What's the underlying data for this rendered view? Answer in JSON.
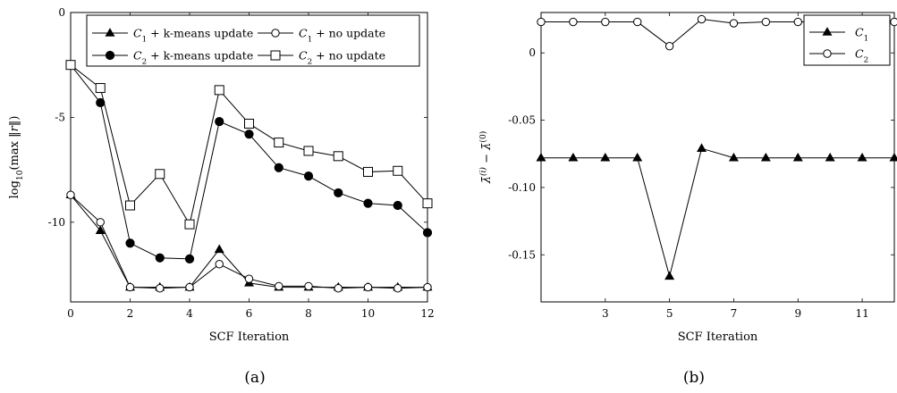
{
  "captions": [
    "(a)",
    "(b)"
  ],
  "chart_data": [
    {
      "type": "line",
      "xlabel": "SCF Iteration",
      "ylabel": "log10(max ||r||)",
      "xlim": [
        0,
        12
      ],
      "ylim": [
        -13.8,
        0
      ],
      "xticks": [
        0,
        2,
        4,
        6,
        8,
        10,
        12
      ],
      "yticks": [
        0,
        -5,
        -10
      ],
      "ytick_labels": [
        "0",
        "-5",
        "-10"
      ],
      "grid": false,
      "legend_position": "top",
      "x": [
        0,
        1,
        2,
        3,
        4,
        5,
        6,
        7,
        8,
        9,
        10,
        11,
        12
      ],
      "series": [
        {
          "name": "C1 + k-means update",
          "marker": "filled-triangle",
          "values": [
            -8.7,
            -10.4,
            -13.1,
            -13.1,
            -13.1,
            -11.3,
            -12.9,
            -13.1,
            -13.1,
            -13.1,
            -13.1,
            -13.1,
            -13.1
          ]
        },
        {
          "name": "C1 + no update",
          "marker": "open-circle",
          "values": [
            -8.7,
            -10.0,
            -13.1,
            -13.15,
            -13.1,
            -12.0,
            -12.7,
            -13.05,
            -13.05,
            -13.15,
            -13.1,
            -13.15,
            -13.1
          ]
        },
        {
          "name": "C2 + k-means update",
          "marker": "filled-circle",
          "values": [
            -2.5,
            -4.3,
            -11.0,
            -11.7,
            -11.75,
            -5.2,
            -5.8,
            -7.4,
            -7.8,
            -8.6,
            -9.1,
            -9.2,
            -10.5
          ]
        },
        {
          "name": "C2 + no update",
          "marker": "open-square",
          "values": [
            -2.5,
            -3.6,
            -9.2,
            -7.7,
            -10.1,
            -3.7,
            -5.3,
            -6.2,
            -6.6,
            -6.85,
            -7.6,
            -7.55,
            -9.1
          ]
        }
      ]
    },
    {
      "type": "line",
      "xlabel": "SCF Iteration",
      "ylabel": "λ̄(i) − λ̄(0)",
      "xlim": [
        1,
        12
      ],
      "ylim": [
        -0.185,
        0.03
      ],
      "xticks": [
        3,
        5,
        7,
        9,
        11
      ],
      "yticks": [
        0,
        -0.05,
        -0.1,
        -0.15
      ],
      "ytick_labels": [
        "0",
        "-0.05",
        "-0.10",
        "-0.15"
      ],
      "grid": false,
      "legend_position": "top-right",
      "x": [
        1,
        2,
        3,
        4,
        5,
        6,
        7,
        8,
        9,
        10,
        11,
        12
      ],
      "series": [
        {
          "name": "C1",
          "marker": "filled-triangle",
          "values": [
            -0.078,
            -0.078,
            -0.078,
            -0.078,
            -0.166,
            -0.071,
            -0.078,
            -0.078,
            -0.078,
            -0.078,
            -0.078,
            -0.078
          ]
        },
        {
          "name": "C2",
          "marker": "open-circle",
          "values": [
            0.023,
            0.023,
            0.023,
            0.023,
            0.005,
            0.025,
            0.022,
            0.023,
            0.023,
            0.023,
            0.023,
            0.023
          ]
        }
      ]
    }
  ]
}
